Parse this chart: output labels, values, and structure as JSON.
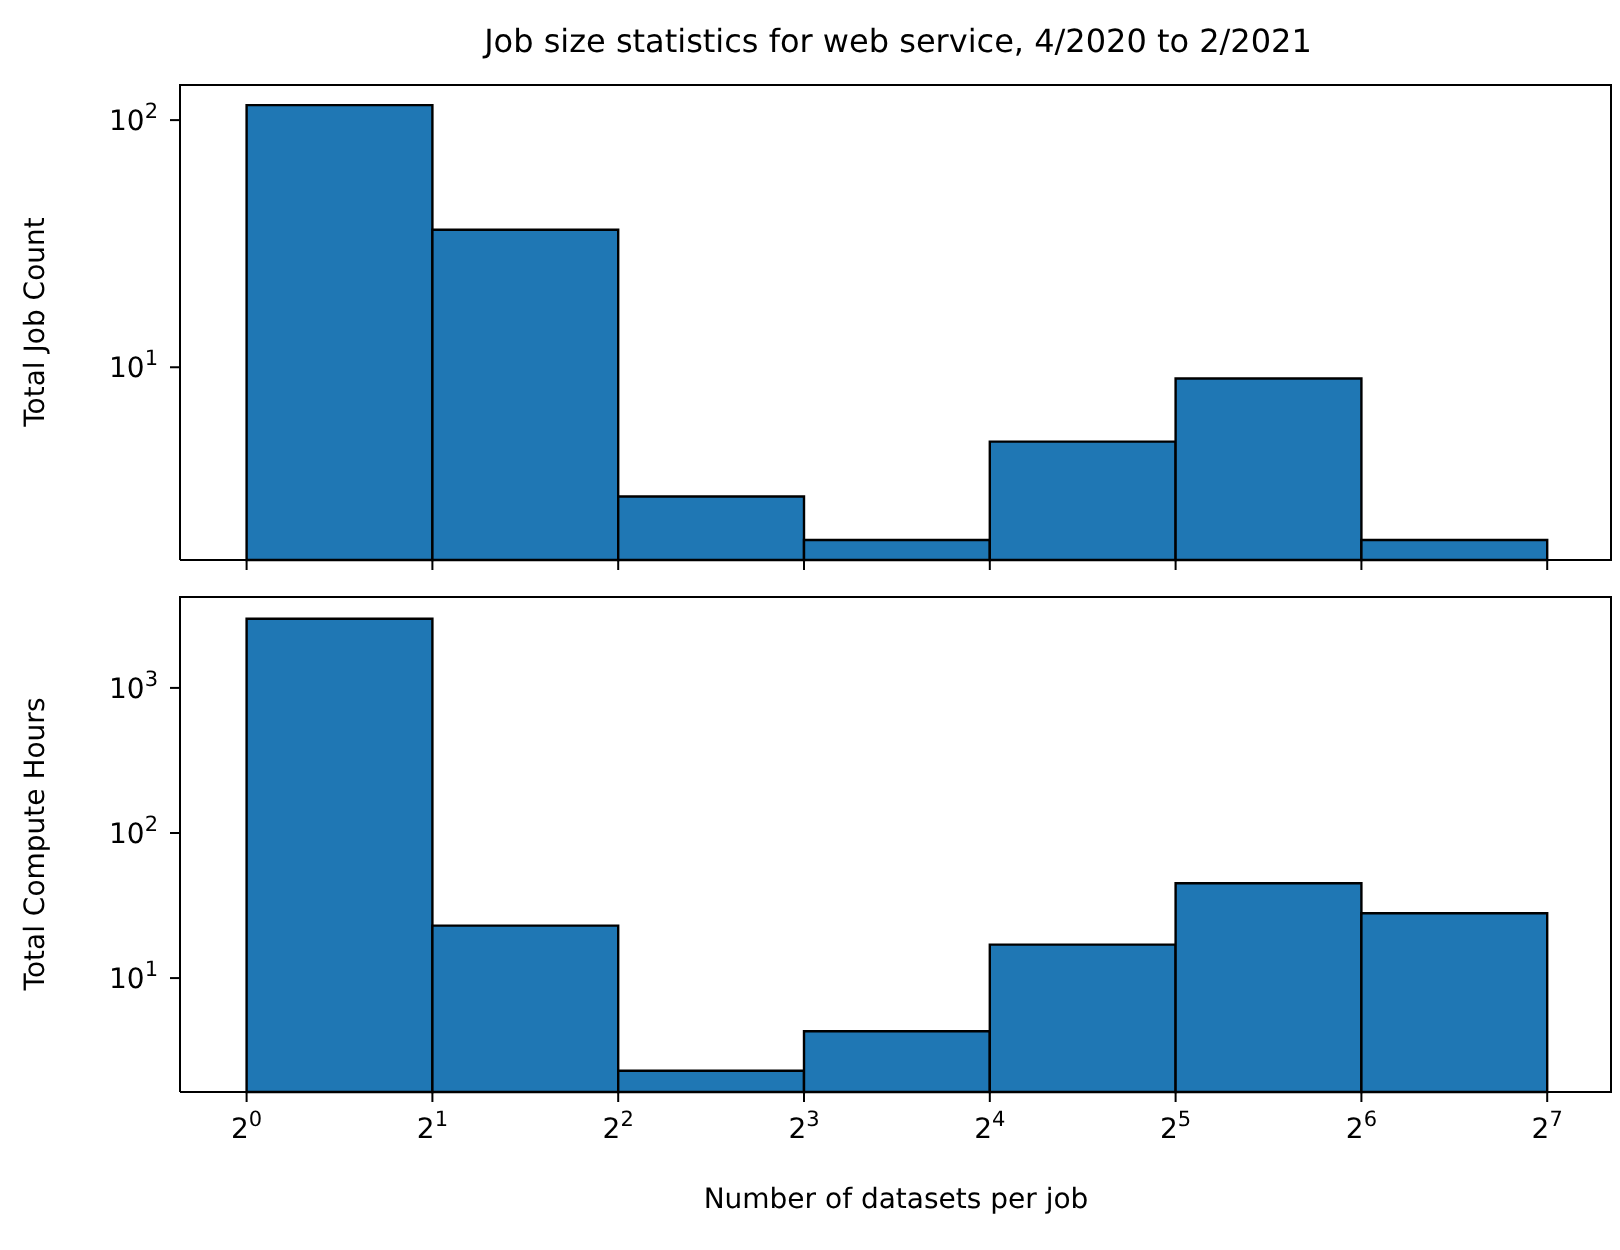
{
  "chart_data": [
    {
      "type": "histogram",
      "title": "Job size statistics for web service, 4/2020 to 2/2021",
      "ylabel": "Total Job Count",
      "bins": [
        1,
        2,
        4,
        8,
        16,
        32,
        64,
        128
      ],
      "values": [
        115,
        36,
        3,
        2,
        5,
        9,
        2
      ],
      "color": "#1f77b4",
      "log": "xy",
      "xlim": [
        0.78,
        163
      ],
      "ylim": [
        1.66,
        140
      ],
      "xticks": [
        {
          "value": 1,
          "label": null
        },
        {
          "value": 2,
          "label": null
        },
        {
          "value": 4,
          "label": null
        },
        {
          "value": 8,
          "label": null
        },
        {
          "value": 16,
          "label": null
        },
        {
          "value": 32,
          "label": null
        },
        {
          "value": 64,
          "label": null
        },
        {
          "value": 128,
          "label": null
        }
      ],
      "yticks": [
        {
          "value": 10,
          "label": "10$^{1}$"
        },
        {
          "value": 100,
          "label": "10$^{2}$"
        }
      ],
      "tick_labels": "y",
      "grid": false
    },
    {
      "type": "histogram",
      "xlabel": "Number of datasets per job",
      "ylabel": "Total Compute Hours",
      "bins": [
        1,
        2,
        4,
        8,
        16,
        32,
        64,
        128
      ],
      "values": [
        3000,
        23,
        2.3,
        4.3,
        17,
        45,
        28
      ],
      "color": "#1f77b4",
      "log": "xy",
      "xlim": [
        0.78,
        163
      ],
      "ylim": [
        1.64,
        4300
      ],
      "xticks": [
        {
          "value": 1,
          "label": "2$^{0}$"
        },
        {
          "value": 2,
          "label": "2$^{1}$"
        },
        {
          "value": 4,
          "label": "2$^{2}$"
        },
        {
          "value": 8,
          "label": "2$^{3}$"
        },
        {
          "value": 16,
          "label": "2$^{4}$"
        },
        {
          "value": 32,
          "label": "2$^{5}$"
        },
        {
          "value": 64,
          "label": "2$^{6}$"
        },
        {
          "value": 128,
          "label": "2$^{7}$"
        }
      ],
      "yticks": [
        {
          "value": 10,
          "label": "10$^{1}$"
        },
        {
          "value": 100,
          "label": "10$^{2}$"
        },
        {
          "value": 1000,
          "label": "10$^{3}$"
        }
      ],
      "grid": false
    }
  ]
}
